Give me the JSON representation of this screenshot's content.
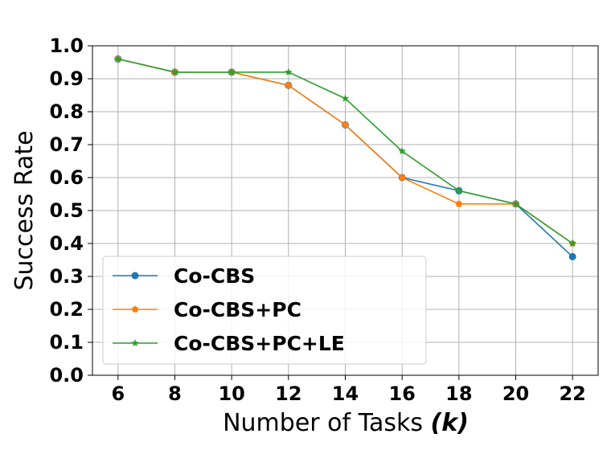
{
  "chart_data": {
    "type": "line",
    "x": [
      6,
      8,
      10,
      12,
      14,
      16,
      18,
      20,
      22
    ],
    "series": [
      {
        "name": "Co-CBS",
        "color": "#1f77b4",
        "marker": "circle",
        "values": [
          0.96,
          0.92,
          0.92,
          0.88,
          0.76,
          0.6,
          0.56,
          0.52,
          0.36
        ]
      },
      {
        "name": "Co-CBS+PC",
        "color": "#ff7f0e",
        "marker": "pentagon",
        "values": [
          0.96,
          0.92,
          0.92,
          0.88,
          0.76,
          0.6,
          0.52,
          0.52,
          0.4
        ]
      },
      {
        "name": "Co-CBS+PC+LE",
        "color": "#2ca02c",
        "marker": "star",
        "values": [
          0.96,
          0.92,
          0.92,
          0.92,
          0.84,
          0.68,
          0.56,
          0.52,
          0.4
        ]
      }
    ],
    "xlabel": "Number of Tasks",
    "xlabel_var": "(k)",
    "ylabel": "Success Rate",
    "xticks": [
      "6",
      "8",
      "10",
      "12",
      "14",
      "16",
      "18",
      "20",
      "22"
    ],
    "yticks": [
      "0.0",
      "0.1",
      "0.2",
      "0.3",
      "0.4",
      "0.5",
      "0.6",
      "0.7",
      "0.8",
      "0.9",
      "1.0"
    ],
    "xlim": [
      5.1,
      22.9
    ],
    "ylim": [
      0,
      1.0
    ],
    "grid": true,
    "legend_position": "lower-left"
  }
}
